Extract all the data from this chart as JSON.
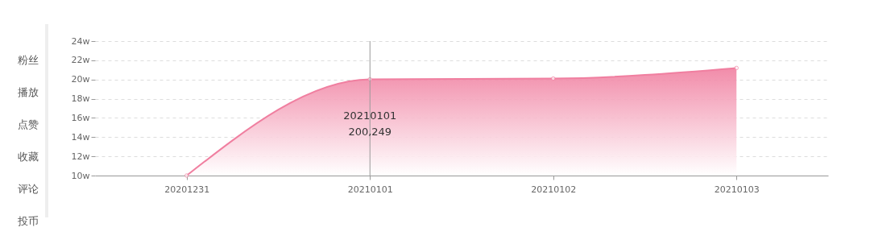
{
  "chart_data": {
    "type": "area",
    "categories": [
      "20201231",
      "20210101",
      "20210102",
      "20210103"
    ],
    "series": [
      {
        "color": "#f07fa0",
        "values": [
          10,
          20.02,
          20.1,
          21.2
        ]
      }
    ],
    "ylim": [
      10,
      24
    ],
    "yticks": [
      {
        "value": 10,
        "label": "10w"
      },
      {
        "value": 12,
        "label": "12w"
      },
      {
        "value": 14,
        "label": "14w"
      },
      {
        "value": 16,
        "label": "16w"
      },
      {
        "value": 18,
        "label": "18w"
      },
      {
        "value": 20,
        "label": "20w"
      },
      {
        "value": 22,
        "label": "22w"
      },
      {
        "value": 24,
        "label": "24w"
      }
    ],
    "grid": "y",
    "marker": "circle",
    "ref_lines": [
      {
        "axis": "x",
        "value": "20210101",
        "color": "#999999"
      }
    ],
    "annotations": [
      "粉丝",
      "播放",
      "点赞",
      "收藏",
      "评论",
      "投币",
      {
        "text": "20210101\n200,249",
        "x": "20210101",
        "y": 20.02
      }
    ]
  }
}
